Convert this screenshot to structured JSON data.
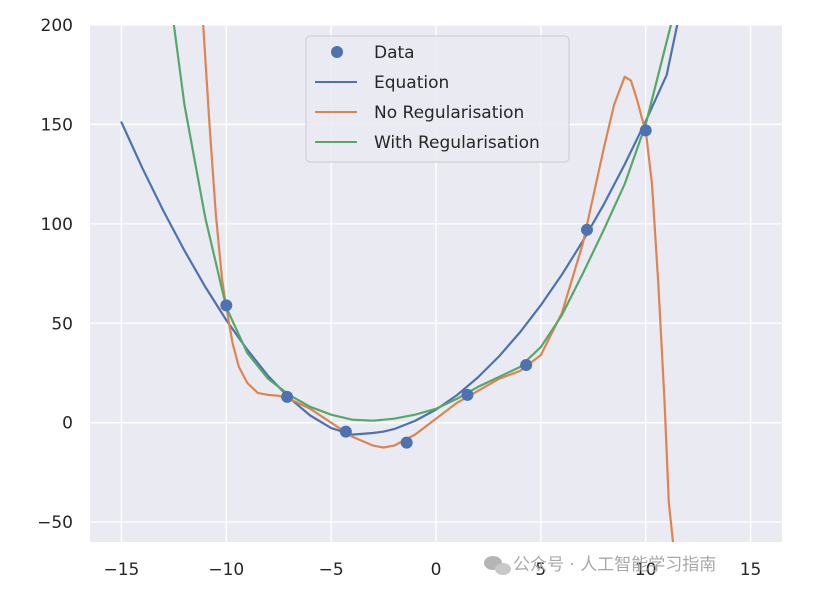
{
  "chart_data": {
    "type": "line",
    "title": "",
    "xlabel": "",
    "ylabel": "",
    "xlim": [
      -16.5,
      16.5
    ],
    "ylim": [
      -60,
      200
    ],
    "xticks": [
      -15,
      -10,
      -5,
      0,
      5,
      10,
      15
    ],
    "xtick_labels": [
      "−15",
      "−10",
      "−5",
      "0",
      "5",
      "10",
      "15"
    ],
    "yticks": [
      -50,
      0,
      50,
      100,
      150,
      200
    ],
    "ytick_labels": [
      "−50",
      "0",
      "50",
      "100",
      "150",
      "200"
    ],
    "grid": true,
    "legend_position": "top-center",
    "scatter": {
      "name": "Data",
      "color": "#4c72b0",
      "points": [
        [
          -10,
          59
        ],
        [
          -7.1,
          13
        ],
        [
          -4.3,
          -4.5
        ],
        [
          -1.4,
          -10
        ],
        [
          1.5,
          14
        ],
        [
          4.3,
          29
        ],
        [
          7.2,
          97
        ],
        [
          10,
          147
        ]
      ]
    },
    "series": [
      {
        "name": "Equation",
        "color": "#4c72b0",
        "x": [
          -15,
          -14,
          -13,
          -12,
          -11,
          -10,
          -9,
          -8,
          -7,
          -6,
          -5,
          -4,
          -3,
          -2.5,
          -2,
          -1,
          0,
          1,
          2,
          3,
          4,
          5,
          6,
          7,
          8,
          9,
          10,
          11,
          11.5
        ],
        "y": [
          151,
          128,
          106.5,
          86.6,
          68.3,
          51.6,
          36.7,
          23.5,
          12.5,
          3.6,
          -2.7,
          -6,
          -5.2,
          -4.5,
          -3.2,
          0.9,
          6.6,
          13.9,
          22.8,
          33.3,
          45.4,
          59.1,
          74.4,
          91.3,
          109.8,
          129.9,
          151.6,
          174.9,
          200
        ]
      },
      {
        "name": "No Regularisation",
        "color": "#dd8452",
        "x": [
          -11.1,
          -10.8,
          -10.5,
          -10.2,
          -10,
          -9.7,
          -9.4,
          -9,
          -8.5,
          -8,
          -7.5,
          -7,
          -6,
          -5,
          -4,
          -3,
          -2.5,
          -2,
          -1,
          0,
          1,
          2,
          3,
          4,
          5,
          6,
          7,
          8,
          8.5,
          9,
          9.3,
          9.6,
          9.9,
          10,
          10.3,
          10.6,
          10.9,
          11.1,
          11.3
        ],
        "y": [
          200,
          150,
          105,
          72,
          58,
          40,
          28,
          20,
          15,
          14,
          13.5,
          12,
          7,
          0,
          -7,
          -11.5,
          -12.5,
          -11.5,
          -6,
          2,
          10,
          16,
          22,
          26,
          34,
          55,
          90,
          138,
          160,
          174,
          172,
          162,
          150,
          147,
          120,
          70,
          10,
          -40,
          -60
        ]
      },
      {
        "name": "With Regularisation",
        "color": "#55a868",
        "x": [
          -12.5,
          -12,
          -11,
          -10,
          -9,
          -8,
          -7,
          -6,
          -5,
          -4,
          -3,
          -2,
          -1,
          0,
          1,
          2,
          3,
          4,
          5,
          6,
          7,
          8,
          9,
          10,
          10.6,
          11.2
        ],
        "y": [
          200,
          160,
          103,
          58,
          35,
          22,
          14,
          8,
          4,
          1.5,
          1,
          2,
          4,
          7,
          12,
          18,
          23,
          28,
          38,
          54,
          75,
          97,
          120,
          150,
          175,
          200
        ]
      }
    ]
  },
  "watermark": "公众号 · 人工智能学习指南"
}
